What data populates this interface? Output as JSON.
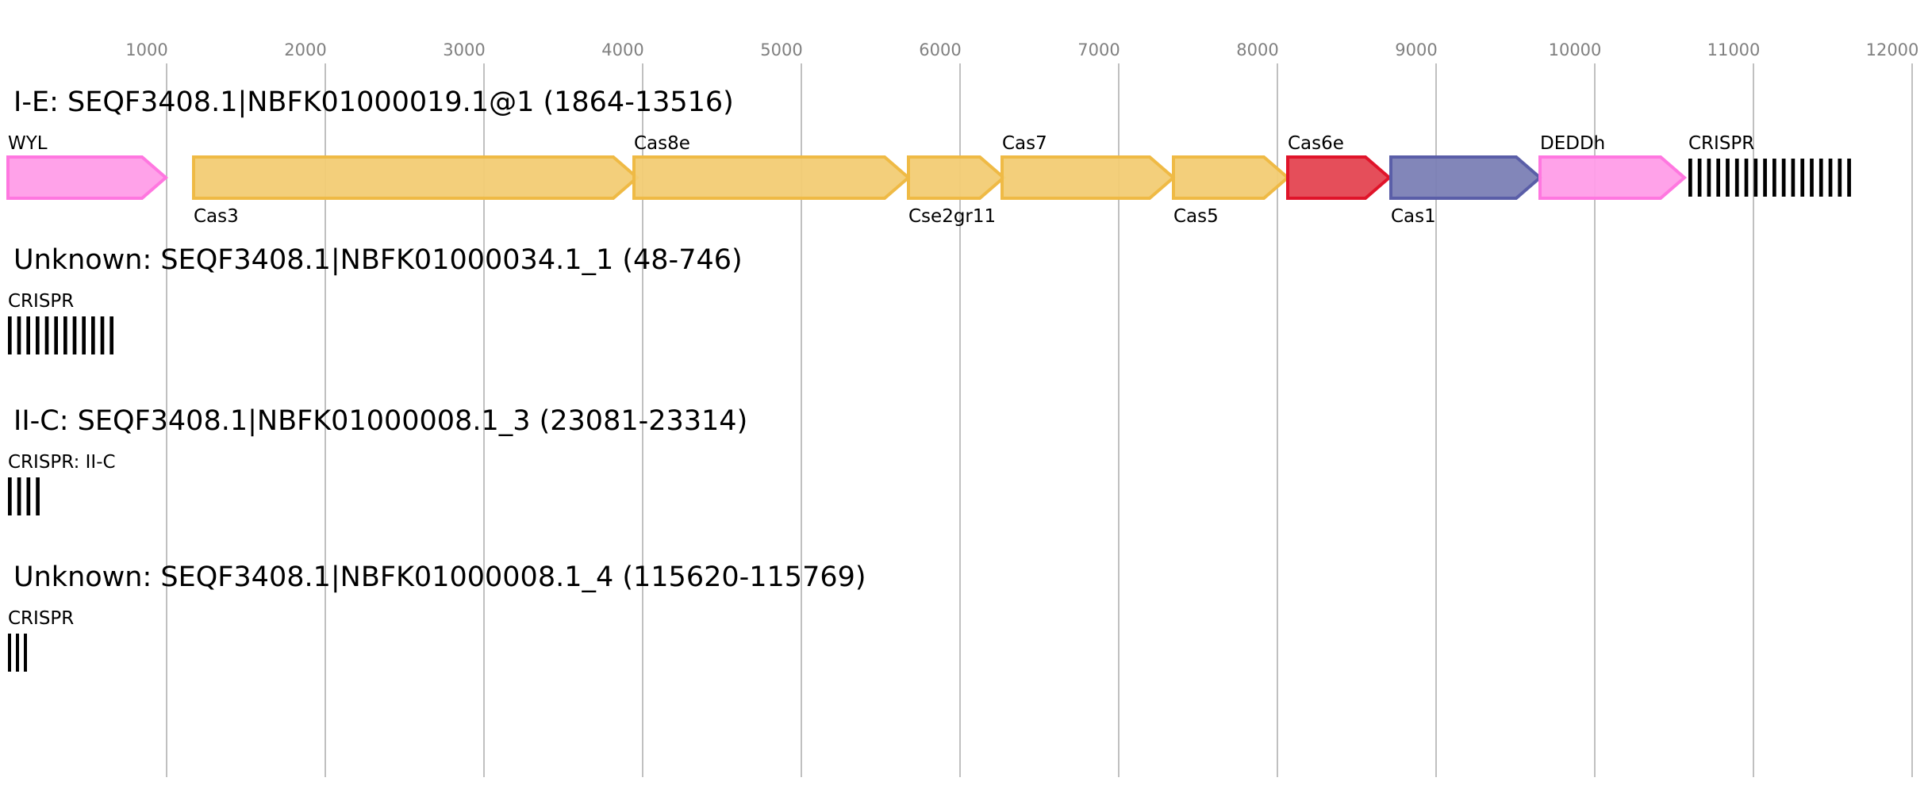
{
  "axis": {
    "ticks": [
      1000,
      2000,
      3000,
      4000,
      5000,
      6000,
      7000,
      8000,
      9000,
      10000,
      11000,
      12000
    ],
    "tick_labels": [
      "1000",
      "2000",
      "3000",
      "4000",
      "5000",
      "6000",
      "7000",
      "8000",
      "9000",
      "10000",
      "11000",
      "12000"
    ],
    "range_bp": [
      0,
      12000
    ]
  },
  "colors": {
    "pink": {
      "fill": "#ff9de8",
      "stroke": "#ff77e0"
    },
    "gold": {
      "fill": "#f2cc74",
      "stroke": "#efba45"
    },
    "red": {
      "fill": "#e44451",
      "stroke": "#e0142a"
    },
    "blue": {
      "fill": "#7b7fb5",
      "stroke": "#5a5ea8"
    },
    "crispr": "#000000",
    "grid": "#c0c0c0",
    "tick_text": "#808080"
  },
  "loci": [
    {
      "title": "I-E: SEQF3408.1|NBFK01000019.1@1 (1864-13516)",
      "features": [
        {
          "label": "WYL",
          "type": "gene",
          "start": 0,
          "end": 995,
          "color": "pink",
          "label_position": "above"
        },
        {
          "label": "Cas3",
          "type": "gene",
          "start": 1170,
          "end": 3965,
          "color": "gold",
          "label_position": "below"
        },
        {
          "label": "Cas8e",
          "type": "gene",
          "start": 3945,
          "end": 5675,
          "color": "gold",
          "label_position": "above"
        },
        {
          "label": "Cse2gr11",
          "type": "gene",
          "start": 5675,
          "end": 6275,
          "color": "gold",
          "label_position": "below"
        },
        {
          "label": "Cas7",
          "type": "gene",
          "start": 6265,
          "end": 7345,
          "color": "gold",
          "label_position": "above"
        },
        {
          "label": "Cas5",
          "type": "gene",
          "start": 7345,
          "end": 8065,
          "color": "gold",
          "label_position": "below"
        },
        {
          "label": "Cas6e",
          "type": "gene",
          "start": 8065,
          "end": 8705,
          "color": "red",
          "label_position": "above"
        },
        {
          "label": "Cas1",
          "type": "gene",
          "start": 8715,
          "end": 9655,
          "color": "blue",
          "label_position": "below"
        },
        {
          "label": "DEDDh",
          "type": "gene",
          "start": 9655,
          "end": 10565,
          "color": "pink",
          "label_position": "above"
        },
        {
          "label": "CRISPR",
          "type": "crispr",
          "start": 10590,
          "end": 11650,
          "repeats": 18,
          "label_position": "above"
        }
      ]
    },
    {
      "title": "Unknown: SEQF3408.1|NBFK01000034.1_1 (48-746)",
      "features": [
        {
          "label": "CRISPR",
          "type": "crispr",
          "start": 0,
          "end": 700,
          "repeats": 12,
          "label_position": "above"
        }
      ]
    },
    {
      "title": "II-C: SEQF3408.1|NBFK01000008.1_3 (23081-23314)",
      "features": [
        {
          "label": "CRISPR: II-C",
          "type": "crispr",
          "start": 0,
          "end": 235,
          "repeats": 4,
          "label_position": "above"
        }
      ]
    },
    {
      "title": "Unknown: SEQF3408.1|NBFK01000008.1_4 (115620-115769)",
      "features": [
        {
          "label": "CRISPR",
          "type": "crispr",
          "start": 0,
          "end": 150,
          "repeats": 3,
          "label_position": "above"
        }
      ]
    }
  ]
}
